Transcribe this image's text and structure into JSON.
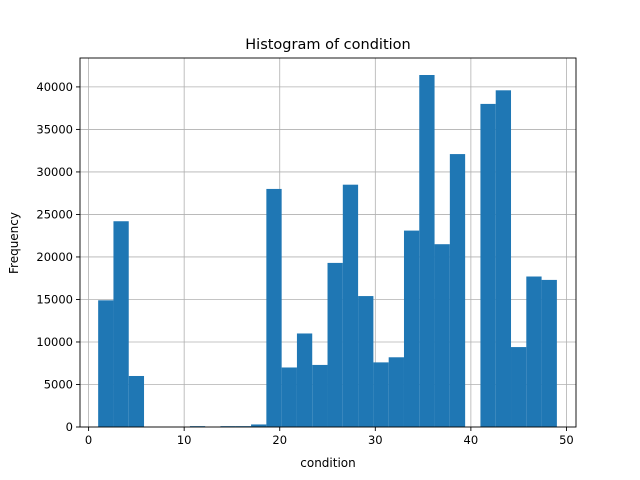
{
  "chart_data": {
    "type": "bar",
    "title": "Histogram of condition",
    "xlabel": "condition",
    "ylabel": "Frequency",
    "xlim": [
      -0.9,
      51.0
    ],
    "ylim": [
      0,
      43400
    ],
    "grid": true,
    "color": "#1f77b4",
    "x_ticks": [
      0,
      10,
      20,
      30,
      40,
      50
    ],
    "y_ticks": [
      0,
      5000,
      10000,
      15000,
      20000,
      25000,
      30000,
      35000,
      40000
    ],
    "bins": [
      {
        "x0": 1.0,
        "x1": 2.6,
        "count": 14900
      },
      {
        "x0": 2.6,
        "x1": 4.2,
        "count": 24200
      },
      {
        "x0": 4.2,
        "x1": 5.8,
        "count": 6000
      },
      {
        "x0": 5.8,
        "x1": 7.4,
        "count": 0
      },
      {
        "x0": 7.4,
        "x1": 9.0,
        "count": 0
      },
      {
        "x0": 9.0,
        "x1": 10.6,
        "count": 0
      },
      {
        "x0": 10.6,
        "x1": 12.2,
        "count": 100
      },
      {
        "x0": 12.2,
        "x1": 13.8,
        "count": 0
      },
      {
        "x0": 13.8,
        "x1": 15.4,
        "count": 100
      },
      {
        "x0": 15.4,
        "x1": 17.0,
        "count": 100
      },
      {
        "x0": 17.0,
        "x1": 18.6,
        "count": 300
      },
      {
        "x0": 18.6,
        "x1": 20.2,
        "count": 28000
      },
      {
        "x0": 20.2,
        "x1": 21.8,
        "count": 7000
      },
      {
        "x0": 21.8,
        "x1": 23.4,
        "count": 11000
      },
      {
        "x0": 23.4,
        "x1": 25.0,
        "count": 7300
      },
      {
        "x0": 25.0,
        "x1": 26.6,
        "count": 19300
      },
      {
        "x0": 26.6,
        "x1": 28.2,
        "count": 28500
      },
      {
        "x0": 28.2,
        "x1": 29.8,
        "count": 15400
      },
      {
        "x0": 29.8,
        "x1": 31.4,
        "count": 7600
      },
      {
        "x0": 31.4,
        "x1": 33.0,
        "count": 8200
      },
      {
        "x0": 33.0,
        "x1": 34.6,
        "count": 23100
      },
      {
        "x0": 34.6,
        "x1": 36.2,
        "count": 41400
      },
      {
        "x0": 36.2,
        "x1": 37.8,
        "count": 21500
      },
      {
        "x0": 37.8,
        "x1": 39.4,
        "count": 32100
      },
      {
        "x0": 39.4,
        "x1": 41.0,
        "count": 0
      },
      {
        "x0": 41.0,
        "x1": 42.6,
        "count": 38000
      },
      {
        "x0": 42.6,
        "x1": 44.2,
        "count": 39600
      },
      {
        "x0": 44.2,
        "x1": 45.8,
        "count": 9400
      },
      {
        "x0": 45.8,
        "x1": 47.4,
        "count": 17700
      },
      {
        "x0": 47.4,
        "x1": 49.0,
        "count": 17300
      }
    ]
  }
}
